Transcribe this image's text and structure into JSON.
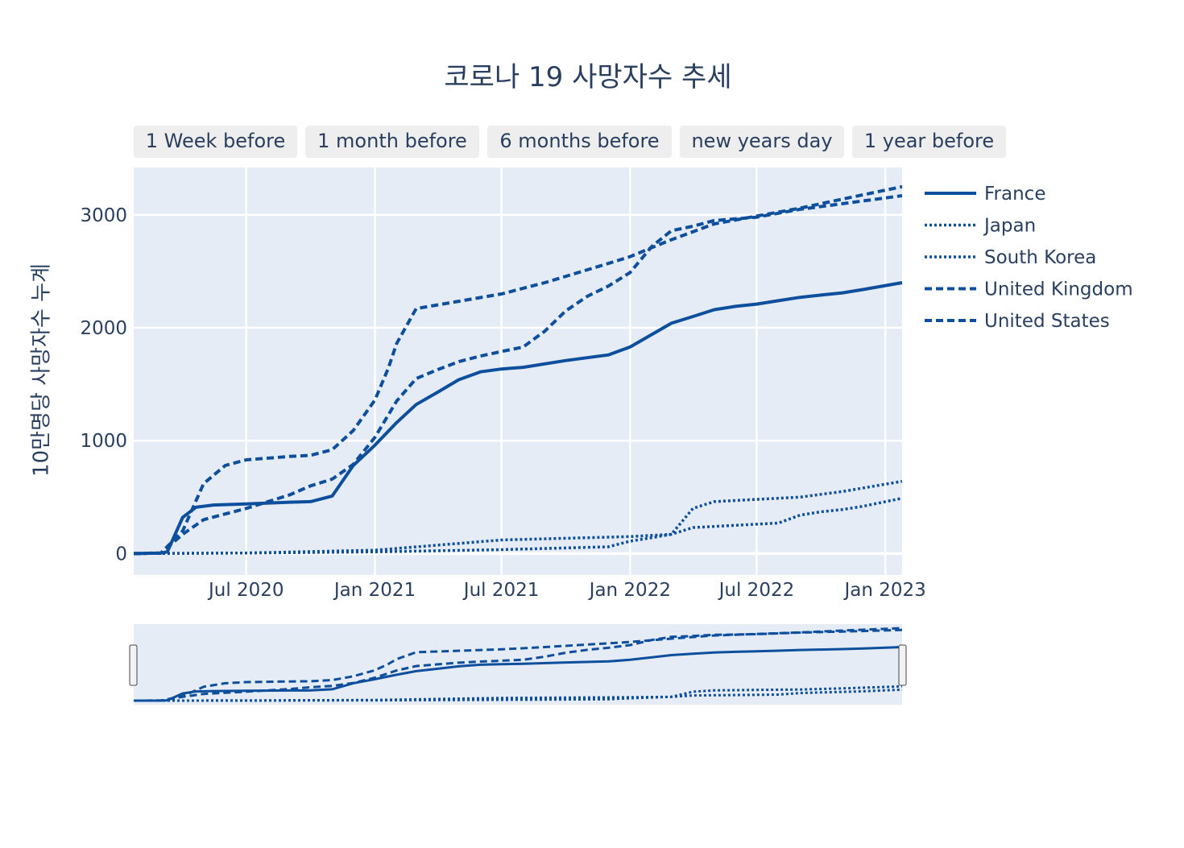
{
  "range_selector": {
    "buttons": [
      "1 Week before",
      "1 month before",
      "6 months before",
      "new years day",
      "1 year before"
    ]
  },
  "colors": {
    "line": "#0d4f9c",
    "plot_bg": "#e5ecf6",
    "grid": "#ffffff",
    "text": "#2a3f5f",
    "button_bg": "#eeeeee"
  },
  "chart_data": {
    "type": "line",
    "title": "코로나 19 사망자수 추세",
    "ylabel": "10만명당 사망자수 누계",
    "xlabel": "",
    "x_ticks": [
      "Jul 2020",
      "Jan 2021",
      "Jul 2021",
      "Jan 2022",
      "Jul 2022",
      "Jan 2023"
    ],
    "y_ticks": [
      0,
      1000,
      2000,
      3000
    ],
    "xlim": [
      "2020-01-22",
      "2023-01-25"
    ],
    "ylim": [
      -190,
      3420
    ],
    "grid": true,
    "legend_position": "top-right",
    "rangeslider": true,
    "series": [
      {
        "name": "France",
        "dash": "solid",
        "x": [
          "2020-01-22",
          "2020-03-01",
          "2020-03-10",
          "2020-04-01",
          "2020-04-20",
          "2020-05-15",
          "2020-07-01",
          "2020-09-01",
          "2020-10-01",
          "2020-11-01",
          "2020-12-01",
          "2021-01-01",
          "2021-02-01",
          "2021-03-01",
          "2021-04-01",
          "2021-05-01",
          "2021-06-01",
          "2021-07-01",
          "2021-08-01",
          "2021-10-01",
          "2021-12-01",
          "2022-01-01",
          "2022-02-01",
          "2022-03-01",
          "2022-04-01",
          "2022-05-01",
          "2022-06-01",
          "2022-07-01",
          "2022-08-01",
          "2022-09-01",
          "2022-10-01",
          "2022-11-01",
          "2022-12-01",
          "2023-01-25"
        ],
        "values": [
          0,
          5,
          15,
          320,
          410,
          430,
          440,
          455,
          460,
          510,
          780,
          960,
          1160,
          1320,
          1430,
          1540,
          1610,
          1635,
          1650,
          1710,
          1760,
          1830,
          1940,
          2040,
          2100,
          2160,
          2190,
          2210,
          2240,
          2270,
          2290,
          2310,
          2340,
          2400
        ]
      },
      {
        "name": "Japan",
        "dash": "dot",
        "x": [
          "2020-01-22",
          "2020-07-01",
          "2021-01-01",
          "2021-07-01",
          "2022-01-01",
          "2022-03-01",
          "2022-04-01",
          "2022-07-01",
          "2022-08-01",
          "2022-09-01",
          "2022-10-01",
          "2022-11-01",
          "2022-12-01",
          "2023-01-25"
        ],
        "values": [
          0,
          5,
          30,
          120,
          150,
          170,
          230,
          260,
          270,
          340,
          370,
          390,
          420,
          490
        ]
      },
      {
        "name": "South Korea",
        "dash": "dot",
        "x": [
          "2020-01-22",
          "2020-07-01",
          "2021-01-01",
          "2021-07-01",
          "2021-12-01",
          "2022-01-01",
          "2022-02-01",
          "2022-03-01",
          "2022-04-01",
          "2022-05-01",
          "2022-07-01",
          "2022-09-01",
          "2022-11-01",
          "2023-01-25"
        ],
        "values": [
          0,
          5,
          15,
          35,
          60,
          110,
          140,
          170,
          400,
          460,
          480,
          500,
          550,
          640
        ]
      },
      {
        "name": "United Kingdom",
        "dash": "dash",
        "x": [
          "2020-01-22",
          "2020-03-01",
          "2020-04-01",
          "2020-05-01",
          "2020-06-01",
          "2020-07-01",
          "2020-09-01",
          "2020-10-01",
          "2020-11-01",
          "2020-12-01",
          "2021-01-01",
          "2021-01-20",
          "2021-02-01",
          "2021-03-01",
          "2021-07-01",
          "2021-09-01",
          "2021-12-01",
          "2022-01-01",
          "2022-02-01",
          "2022-03-01",
          "2022-05-01",
          "2022-07-01",
          "2022-09-01",
          "2022-11-01",
          "2023-01-25"
        ],
        "values": [
          0,
          5,
          200,
          620,
          780,
          830,
          860,
          870,
          920,
          1090,
          1360,
          1640,
          1860,
          2170,
          2300,
          2400,
          2570,
          2630,
          2710,
          2780,
          2920,
          2990,
          3060,
          3140,
          3250
        ]
      },
      {
        "name": "United States",
        "dash": "dash",
        "x": [
          "2020-01-22",
          "2020-03-01",
          "2020-04-01",
          "2020-05-01",
          "2020-07-01",
          "2020-09-01",
          "2020-10-01",
          "2020-11-01",
          "2020-12-01",
          "2021-01-01",
          "2021-02-01",
          "2021-03-01",
          "2021-04-01",
          "2021-05-01",
          "2021-06-01",
          "2021-07-01",
          "2021-08-01",
          "2021-09-01",
          "2021-10-01",
          "2021-11-01",
          "2021-12-01",
          "2022-01-01",
          "2022-02-01",
          "2022-03-01",
          "2022-04-01",
          "2022-05-01",
          "2022-07-01",
          "2022-09-01",
          "2022-11-01",
          "2023-01-25"
        ],
        "values": [
          0,
          5,
          170,
          300,
          400,
          520,
          600,
          660,
          790,
          1030,
          1350,
          1550,
          1630,
          1700,
          1750,
          1790,
          1830,
          1970,
          2150,
          2280,
          2370,
          2490,
          2720,
          2860,
          2900,
          2950,
          2980,
          3050,
          3100,
          3170
        ]
      }
    ]
  }
}
